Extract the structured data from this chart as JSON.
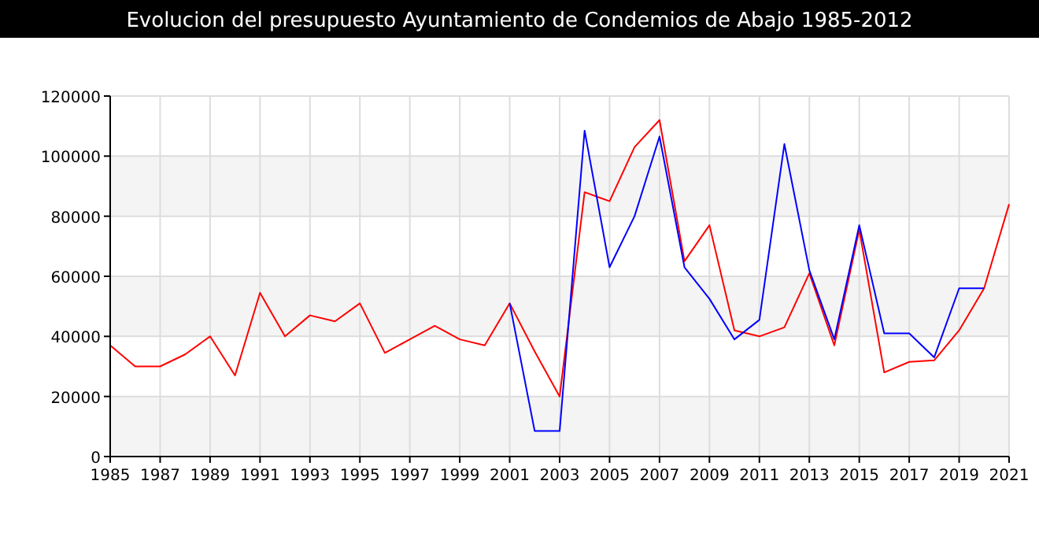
{
  "chart_data": {
    "type": "line",
    "title": "Evolucion del presupuesto Ayuntamiento de Condemios de Abajo 1985-2012",
    "x": [
      1985,
      1986,
      1987,
      1988,
      1989,
      1990,
      1991,
      1992,
      1993,
      1994,
      1995,
      1996,
      1997,
      1998,
      1999,
      2000,
      2001,
      2002,
      2003,
      2004,
      2005,
      2006,
      2007,
      2008,
      2009,
      2010,
      2011,
      2012,
      2013,
      2014,
      2015,
      2016,
      2017,
      2018,
      2019,
      2020,
      2021
    ],
    "series": [
      {
        "color": "#ff0000",
        "values": [
          37000,
          30000,
          30000,
          34000,
          40000,
          27000,
          54500,
          40000,
          47000,
          45000,
          51000,
          34500,
          39000,
          43500,
          39000,
          37000,
          51000,
          35000,
          20000,
          88000,
          85000,
          103000,
          112000,
          65000,
          77000,
          42000,
          40000,
          43000,
          61000,
          37000,
          75500,
          28000,
          31500,
          32000,
          42000,
          56000,
          84000
        ]
      },
      {
        "color": "#0000ff",
        "values": [
          null,
          null,
          null,
          null,
          null,
          null,
          null,
          null,
          null,
          null,
          null,
          null,
          null,
          null,
          null,
          null,
          51000,
          8500,
          8500,
          108500,
          63000,
          80000,
          106500,
          63000,
          52500,
          39000,
          45500,
          104000,
          62000,
          39000,
          77000,
          41000,
          41000,
          33000,
          56000,
          56000,
          null
        ]
      }
    ],
    "xlim": [
      1985,
      2021
    ],
    "xticks": [
      1985,
      1987,
      1989,
      1991,
      1993,
      1995,
      1997,
      1999,
      2001,
      2003,
      2005,
      2007,
      2009,
      2011,
      2013,
      2015,
      2017,
      2019,
      2021
    ],
    "ylim": [
      0,
      120000
    ],
    "yticks": [
      0,
      20000,
      40000,
      60000,
      80000,
      100000,
      120000
    ],
    "grid": true
  }
}
